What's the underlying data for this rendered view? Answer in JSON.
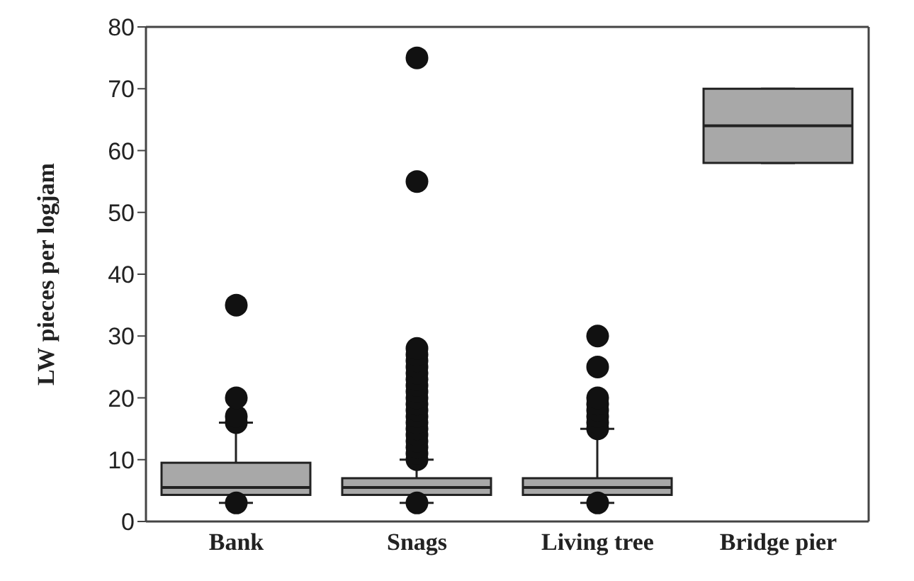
{
  "chart_data": {
    "type": "box",
    "ylabel": "LW pieces per logjam",
    "categories": [
      "Bank",
      "Snags",
      "Living tree",
      "Bridge pier"
    ],
    "boxes": [
      {
        "low": 3,
        "q1": 4.3,
        "median": 5.5,
        "q3": 9.5,
        "high": 16,
        "outliers": [
          3,
          16,
          17,
          20,
          35
        ]
      },
      {
        "low": 3,
        "q1": 4.3,
        "median": 5.5,
        "q3": 7,
        "high": 10,
        "outliers": [
          3,
          10,
          11,
          12,
          13,
          14,
          15,
          16,
          17,
          18,
          19,
          20,
          21,
          22,
          23,
          24,
          25,
          26,
          27,
          28,
          55,
          75
        ]
      },
      {
        "low": 3,
        "q1": 4.3,
        "median": 5.5,
        "q3": 7,
        "high": 15,
        "outliers": [
          3,
          15,
          16,
          17,
          18,
          19,
          20,
          25,
          30
        ]
      },
      {
        "low": 58,
        "q1": 58,
        "median": 64,
        "q3": 70,
        "high": 70
      }
    ],
    "color": "#a8a8a8",
    "ylim": [
      0,
      80
    ],
    "yticks": [
      0,
      10,
      20,
      30,
      40,
      50,
      60,
      70,
      80
    ]
  }
}
